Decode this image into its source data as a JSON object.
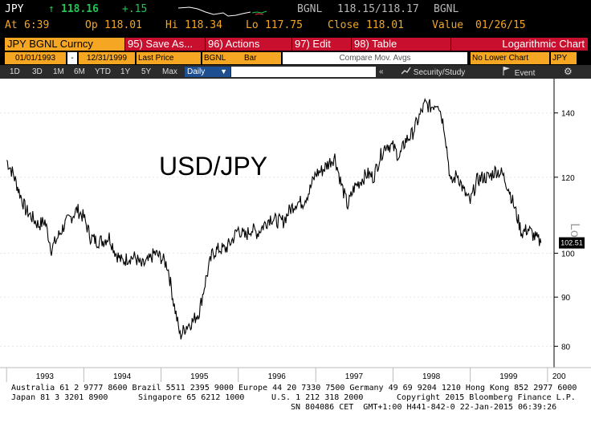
{
  "quote": {
    "symbol": "JPY",
    "arrow": "↑",
    "last": "118.16",
    "change": "+.15",
    "source": "BGNL",
    "bid_ask": "118.15/118.17",
    "source2": "BGNL",
    "at_label": "At",
    "at_value": "6:39",
    "op_label": "Op",
    "op_value": "118.01",
    "hi_label": "Hi",
    "hi_value": "118.34",
    "lo_label": "Lo",
    "lo_value": "117.75",
    "close_label": "Close",
    "close_value": "118.01",
    "value_label": "Value",
    "value_value": "01/26/15"
  },
  "menu": {
    "ticker": "JPY BGNL Curncy",
    "save": "95) Save As...",
    "actions": "96) Actions",
    "edit": "97) Edit",
    "table": "98) Table",
    "chart_type": "Logarithmic Chart"
  },
  "controls": {
    "start_date": "01/01/1993",
    "dash": "-",
    "end_date": "12/31/1999",
    "field": "Last Price",
    "source": "BGNL",
    "style": "Bar",
    "compare": "Compare Mov. Avgs",
    "lower": "No Lower Chart",
    "currency": "JPY"
  },
  "range": {
    "buttons": [
      "1D",
      "3D",
      "1M",
      "6M",
      "YTD",
      "1Y",
      "5Y",
      "Max"
    ],
    "period": "Daily",
    "back": "«",
    "security": "Security/Study",
    "event": "Event"
  },
  "chart_data": {
    "type": "line",
    "title": "USD/JPY",
    "ylabel": "Log",
    "log_scale": true,
    "ylim": [
      76,
      152
    ],
    "y_ticks": [
      80,
      90,
      100,
      120,
      140
    ],
    "x_ticks": [
      "1993",
      "1994",
      "1995",
      "1996",
      "1997",
      "1998",
      "1999",
      "200"
    ],
    "last_value_label": "102.51",
    "series": [
      {
        "values": [
          [
            "1993-01-01",
            125
          ],
          [
            "1993-02-01",
            121
          ],
          [
            "1993-03-01",
            116
          ],
          [
            "1993-04-01",
            111
          ],
          [
            "1993-05-01",
            109
          ],
          [
            "1993-06-01",
            107
          ],
          [
            "1993-07-01",
            108
          ],
          [
            "1993-08-01",
            101
          ],
          [
            "1993-09-01",
            104
          ],
          [
            "1993-10-01",
            107
          ],
          [
            "1993-11-01",
            109
          ],
          [
            "1993-12-01",
            111
          ],
          [
            "1994-01-01",
            109
          ],
          [
            "1994-02-01",
            104
          ],
          [
            "1994-03-01",
            103
          ],
          [
            "1994-04-01",
            103
          ],
          [
            "1994-05-01",
            104
          ],
          [
            "1994-06-01",
            100
          ],
          [
            "1994-07-01",
            98
          ],
          [
            "1994-08-01",
            99
          ],
          [
            "1994-09-01",
            99
          ],
          [
            "1994-10-01",
            97
          ],
          [
            "1994-11-01",
            98
          ],
          [
            "1994-12-01",
            100
          ],
          [
            "1995-01-01",
            99
          ],
          [
            "1995-02-01",
            97
          ],
          [
            "1995-03-01",
            89
          ],
          [
            "1995-04-01",
            82
          ],
          [
            "1995-05-01",
            84
          ],
          [
            "1995-06-01",
            85
          ],
          [
            "1995-07-01",
            87
          ],
          [
            "1995-08-01",
            94
          ],
          [
            "1995-09-01",
            100
          ],
          [
            "1995-10-01",
            101
          ],
          [
            "1995-11-01",
            101
          ],
          [
            "1995-12-01",
            103
          ],
          [
            "1996-01-01",
            106
          ],
          [
            "1996-02-01",
            104
          ],
          [
            "1996-03-01",
            106
          ],
          [
            "1996-04-01",
            105
          ],
          [
            "1996-05-01",
            107
          ],
          [
            "1996-06-01",
            109
          ],
          [
            "1996-07-01",
            108
          ],
          [
            "1996-08-01",
            108
          ],
          [
            "1996-09-01",
            111
          ],
          [
            "1996-10-01",
            113
          ],
          [
            "1996-11-01",
            113
          ],
          [
            "1996-12-01",
            116
          ],
          [
            "1997-01-01",
            121
          ],
          [
            "1997-02-01",
            122
          ],
          [
            "1997-03-01",
            124
          ],
          [
            "1997-04-01",
            126
          ],
          [
            "1997-05-01",
            118
          ],
          [
            "1997-06-01",
            112
          ],
          [
            "1997-07-01",
            117
          ],
          [
            "1997-08-01",
            119
          ],
          [
            "1997-09-01",
            121
          ],
          [
            "1997-10-01",
            120
          ],
          [
            "1997-11-01",
            126
          ],
          [
            "1997-12-01",
            130
          ],
          [
            "1998-01-01",
            129
          ],
          [
            "1998-02-01",
            126
          ],
          [
            "1998-03-01",
            131
          ],
          [
            "1998-04-01",
            133
          ],
          [
            "1998-05-01",
            138
          ],
          [
            "1998-06-01",
            143
          ],
          [
            "1998-07-01",
            142
          ],
          [
            "1998-08-01",
            144
          ],
          [
            "1998-09-01",
            135
          ],
          [
            "1998-10-01",
            118
          ],
          [
            "1998-11-01",
            121
          ],
          [
            "1998-12-01",
            116
          ],
          [
            "1999-01-01",
            113
          ],
          [
            "1999-02-01",
            119
          ],
          [
            "1999-03-01",
            120
          ],
          [
            "1999-04-01",
            120
          ],
          [
            "1999-05-01",
            122
          ],
          [
            "1999-06-01",
            121
          ],
          [
            "1999-07-01",
            117
          ],
          [
            "1999-08-01",
            111
          ],
          [
            "1999-09-01",
            105
          ],
          [
            "1999-10-01",
            106
          ],
          [
            "1999-11-01",
            104
          ],
          [
            "1999-12-01",
            102.51
          ]
        ]
      }
    ]
  },
  "footer": {
    "line1": "Australia 61 2 9777 8600 Brazil 5511 2395 9000 Europe 44 20 7330 7500 Germany 49 69 9204 1210 Hong Kong 852 2977 6000",
    "line2a": "Japan 81 3 3201 8900",
    "line2b": "Singapore 65 6212 1000",
    "line2c": "U.S. 1 212 318 2000",
    "line2d": "Copyright 2015 Bloomberg Finance L.P.",
    "line3": "SN 804086 CET  GMT+1:00 H441-842-0 22-Jan-2015 06:39:26"
  },
  "colors": {
    "amber": "#f5a623",
    "menu_red": "#c8102e",
    "up_green": "#23c552",
    "series": "#000000"
  }
}
